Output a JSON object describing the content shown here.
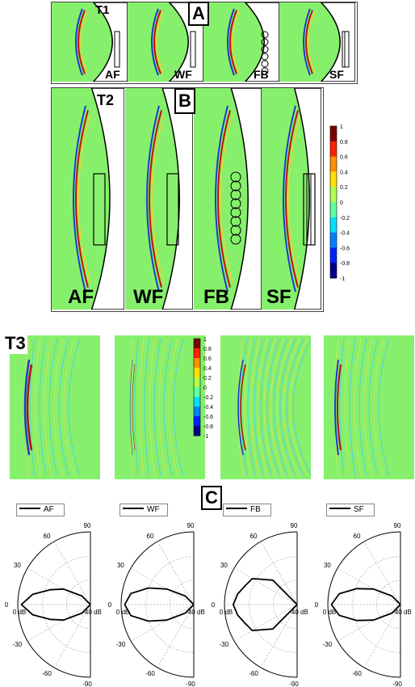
{
  "section_a": {
    "label": "A",
    "row_label": "T1",
    "panels": [
      "AF",
      "WF",
      "FB",
      "SF"
    ]
  },
  "section_b": {
    "label": "B",
    "row_label": "T2",
    "panels": [
      "AF",
      "WF",
      "FB",
      "SF"
    ]
  },
  "section_t3": {
    "row_label": "T3"
  },
  "section_c": {
    "label": "C",
    "legends": [
      "AF",
      "WF",
      "FB",
      "SF"
    ]
  },
  "colorbar": {
    "ticks": [
      "1",
      "0.8",
      "0.6",
      "0.4",
      "0.2",
      "0",
      "-0.2",
      "-0.4",
      "-0.6",
      "-0.8",
      "-1"
    ],
    "colors": [
      "#7a0000",
      "#ff2000",
      "#ff9000",
      "#ffe000",
      "#b0ff50",
      "#60ffa0",
      "#00e0ff",
      "#0080ff",
      "#0020ff",
      "#00008a"
    ]
  },
  "polar": {
    "angle_labels": [
      "90",
      "60",
      "30",
      "0",
      "-30",
      "-60",
      "-90"
    ],
    "radial_labels": [
      "0 dB",
      "-40 dB"
    ]
  },
  "chart_data": [
    {
      "type": "polar",
      "series": [
        {
          "name": "AF",
          "theta": [
            -90,
            -60,
            -45,
            -30,
            -20,
            -10,
            0,
            10,
            20,
            30,
            45,
            60,
            90
          ],
          "r_db": [
            -40,
            -40,
            -33,
            -22,
            -15,
            -6,
            0,
            -6,
            -15,
            -22,
            -33,
            -40,
            -40
          ]
        }
      ],
      "theta_range": [
        -90,
        90
      ],
      "r_range_db": [
        -40,
        0
      ]
    },
    {
      "type": "polar",
      "series": [
        {
          "name": "WF",
          "theta": [
            -90,
            -60,
            -45,
            -30,
            -20,
            -10,
            0,
            10,
            20,
            30,
            45,
            60,
            90
          ],
          "r_db": [
            -40,
            -40,
            -33,
            -22,
            -12,
            -3,
            0,
            -3,
            -12,
            -22,
            -33,
            -40,
            -40
          ]
        }
      ],
      "theta_range": [
        -90,
        90
      ],
      "r_range_db": [
        -40,
        0
      ]
    },
    {
      "type": "polar",
      "series": [
        {
          "name": "FB",
          "theta": [
            -90,
            -60,
            -45,
            -30,
            -20,
            -10,
            0,
            10,
            20,
            30,
            45,
            60,
            90
          ],
          "r_db": [
            -40,
            -40,
            -20,
            -10,
            -8,
            -5,
            -3,
            -5,
            -8,
            -10,
            -20,
            -40,
            -40
          ]
        }
      ],
      "theta_range": [
        -90,
        90
      ],
      "r_range_db": [
        -40,
        0
      ]
    },
    {
      "type": "polar",
      "series": [
        {
          "name": "SF",
          "theta": [
            -90,
            -60,
            -45,
            -30,
            -20,
            -10,
            0,
            10,
            20,
            30,
            45,
            60,
            90
          ],
          "r_db": [
            -40,
            -40,
            -33,
            -22,
            -13,
            -4,
            0,
            -4,
            -13,
            -22,
            -33,
            -40,
            -40
          ]
        }
      ],
      "theta_range": [
        -90,
        90
      ],
      "r_range_db": [
        -40,
        0
      ]
    }
  ]
}
